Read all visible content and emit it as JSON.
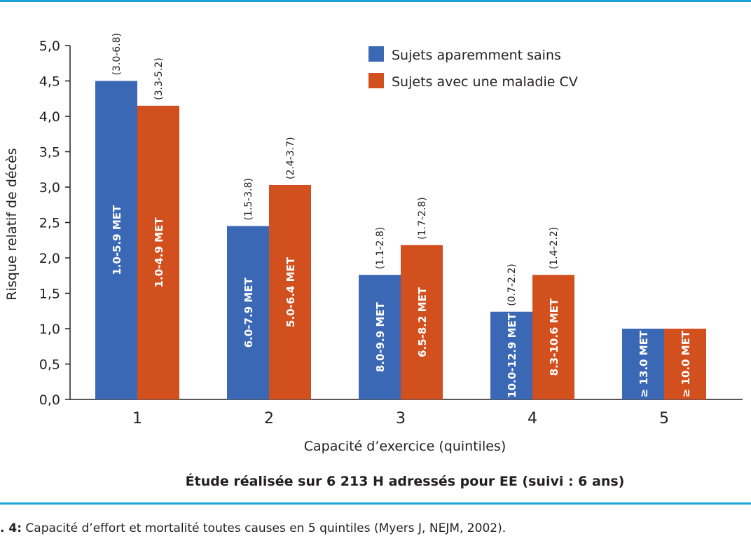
{
  "chart_data": {
    "type": "bar",
    "categories": [
      "1",
      "2",
      "3",
      "4",
      "5"
    ],
    "series": [
      {
        "name": "Sujets aparemment sains",
        "color": "#3b68b5",
        "values": [
          4.5,
          2.45,
          1.76,
          1.24,
          1.0
        ],
        "ci": [
          "(3.0-6.8)",
          "(1.5-3.8)",
          "(1.1-2.8)",
          "(0.7-2.2)",
          ""
        ],
        "labels": [
          "1.0-5.9 MET",
          "6.0-7.9 MET",
          "8.0-9.9 MET",
          "10.0-12.9 MET",
          "≥ 13.0 MET"
        ]
      },
      {
        "name": "Sujets avec une maladie CV",
        "color": "#d24f1e",
        "values": [
          4.15,
          3.03,
          2.18,
          1.76,
          1.0
        ],
        "ci": [
          "(3.3-5.2)",
          "(2.4-3.7)",
          "(1.7-2.8)",
          "(1.4-2.2)",
          ""
        ],
        "labels": [
          "1.0-4.9 MET",
          "5.0-6.4 MET",
          "6.5-8.2 MET",
          "8.3-10.6 MET",
          "≥ 10.0 MET"
        ]
      }
    ],
    "yticks": [
      "0,0",
      "0,5",
      "1,0",
      "1,5",
      "2,0",
      "2,5",
      "3,0",
      "3,5",
      "4,0",
      "4,5",
      "5,0"
    ],
    "ylim": [
      0,
      5
    ],
    "xlabel": "Capacité d’exercice (quintiles)",
    "ylabel": "Risque relatif de décès",
    "subtitle": "Étude réalisée sur 6 213 H adressés pour EE (suivi : 6 ans)",
    "legend_position": "top-right",
    "grid": false
  },
  "caption": {
    "prefix": ". 4:",
    "text": " Capacité d’effort et mortalité toutes causes en 5 quintiles (Myers J, NEJM, 2002)."
  },
  "rule_color": "#1aa3d6"
}
